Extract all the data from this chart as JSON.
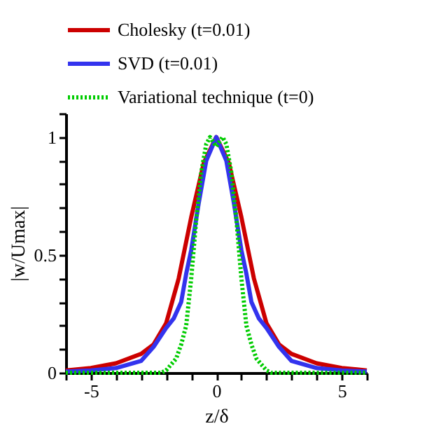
{
  "chart_data": {
    "type": "line",
    "xlabel": "z/δ",
    "ylabel": "|w/Umax|",
    "xlim": [
      -6,
      6
    ],
    "ylim": [
      0,
      1.1
    ],
    "xticks": [
      {
        "value": -6,
        "label": null
      },
      -5,
      {
        "value": -4,
        "label": null
      },
      {
        "value": -3,
        "label": null
      },
      {
        "value": -2,
        "label": null
      },
      {
        "value": -1,
        "label": null
      },
      0,
      {
        "value": 1,
        "label": null
      },
      {
        "value": 2,
        "label": null
      },
      {
        "value": 3,
        "label": null
      },
      {
        "value": 4,
        "label": null
      },
      5,
      {
        "value": 6,
        "label": null
      }
    ],
    "yticks": [
      0,
      {
        "value": 0.1,
        "label": null
      },
      {
        "value": 0.2,
        "label": null
      },
      {
        "value": 0.3,
        "label": null
      },
      {
        "value": 0.4,
        "label": null
      },
      0.5,
      {
        "value": 0.6,
        "label": null
      },
      {
        "value": 0.7,
        "label": null
      },
      {
        "value": 0.8,
        "label": null
      },
      {
        "value": 0.9,
        "label": null
      },
      1,
      {
        "value": 1.1,
        "label": null
      }
    ],
    "grid": false,
    "legend": "top left",
    "marker": "none",
    "series": [
      {
        "name": "Cholesky (t=0.01)",
        "color": "#cc0000",
        "line_style": "solid",
        "x": [
          -6,
          -5,
          -4,
          -3,
          -2.5,
          -2,
          -1.5,
          -1,
          -0.5,
          0,
          0.5,
          1,
          1.5,
          2,
          2.5,
          3,
          4,
          5,
          6
        ],
        "values": [
          0.01,
          0.02,
          0.04,
          0.08,
          0.12,
          0.21,
          0.4,
          0.66,
          0.89,
          1.0,
          0.89,
          0.66,
          0.4,
          0.21,
          0.12,
          0.08,
          0.04,
          0.02,
          0.01
        ]
      },
      {
        "name": "SVD (t=0.01)",
        "color": "#3333ee",
        "line_style": "solid",
        "x": [
          -6,
          -5,
          -4,
          -3,
          -2.5,
          -2,
          -1.7,
          -1.4,
          -1.2,
          -1,
          -0.7,
          -0.4,
          0,
          0.4,
          0.7,
          1,
          1.2,
          1.4,
          1.7,
          2,
          2.5,
          3,
          4,
          5,
          6
        ],
        "values": [
          0.005,
          0.01,
          0.02,
          0.05,
          0.11,
          0.19,
          0.23,
          0.3,
          0.42,
          0.52,
          0.72,
          0.9,
          1.0,
          0.9,
          0.72,
          0.52,
          0.42,
          0.3,
          0.23,
          0.19,
          0.11,
          0.05,
          0.02,
          0.01,
          0.005
        ]
      },
      {
        "name": "Variational technique (t=0)",
        "color": "#00cc00",
        "line_style": "dotted",
        "x": [
          -6,
          -2.2,
          -2,
          -1.6,
          -1.4,
          -1.2,
          -1,
          -0.8,
          -0.6,
          -0.4,
          -0.25,
          0,
          0.25,
          0.4,
          0.6,
          0.8,
          1,
          1.2,
          1.4,
          1.6,
          2,
          2.2,
          6
        ],
        "values": [
          0,
          0,
          0.01,
          0.06,
          0.12,
          0.2,
          0.4,
          0.65,
          0.85,
          0.97,
          1.0,
          0.96,
          1.0,
          0.97,
          0.85,
          0.65,
          0.4,
          0.2,
          0.12,
          0.06,
          0.01,
          0,
          0
        ]
      }
    ]
  }
}
